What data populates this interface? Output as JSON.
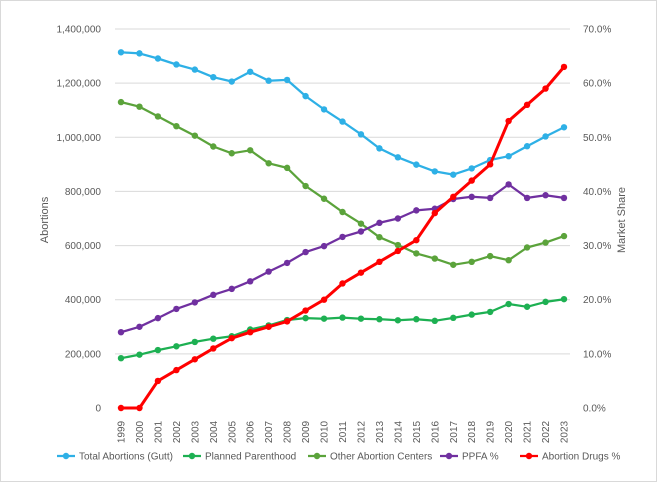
{
  "chart_data": {
    "type": "line",
    "title": "",
    "xlabel": "",
    "ylabel": "Abortions",
    "y2label": "Market Share",
    "ylim": [
      0,
      1400000
    ],
    "y2lim": [
      0,
      70
    ],
    "yticks": [
      0,
      200000,
      400000,
      600000,
      800000,
      1000000,
      1200000,
      1400000
    ],
    "ytick_labels": [
      "0",
      "200,000",
      "400,000",
      "600,000",
      "800,000",
      "1,000,000",
      "1,200,000",
      "1,400,000"
    ],
    "y2ticks": [
      0,
      10,
      20,
      30,
      40,
      50,
      60,
      70
    ],
    "y2tick_labels": [
      "0.0%",
      "10.0%",
      "20.0%",
      "30.0%",
      "40.0%",
      "50.0%",
      "60.0%",
      "70.0%"
    ],
    "grid": "horizontal",
    "legend_position": "bottom",
    "x": [
      "1999",
      "2000",
      "2001",
      "2002",
      "2003",
      "2004",
      "2005",
      "2006",
      "2007",
      "2008",
      "2009",
      "2010",
      "2011",
      "2012",
      "2013",
      "2014",
      "2015",
      "2016",
      "2017",
      "2018",
      "2019",
      "2020",
      "2021",
      "2022",
      "2023"
    ],
    "series": [
      {
        "name": "Total Abortions (Gutt)",
        "axis": "left",
        "color": "#2EB0E6",
        "values": [
          1314000,
          1310000,
          1291000,
          1269000,
          1250000,
          1222000,
          1206000,
          1242000,
          1209000,
          1212000,
          1152000,
          1103000,
          1058000,
          1011000,
          959000,
          926000,
          899000,
          874000,
          862000,
          885000,
          916000,
          930000,
          967000,
          1003000,
          1037000
        ]
      },
      {
        "name": "Planned Parenthood",
        "axis": "left",
        "color": "#1DB052",
        "values": [
          184000,
          197000,
          214000,
          228000,
          244000,
          256000,
          265000,
          290000,
          305000,
          325000,
          332000,
          330000,
          334000,
          330000,
          328000,
          324000,
          328000,
          322000,
          333000,
          345000,
          355000,
          384000,
          374000,
          392000,
          402000
        ]
      },
      {
        "name": "Other Abortion Centers",
        "axis": "left",
        "color": "#5BA33B",
        "values": [
          1130000,
          1113000,
          1077000,
          1041000,
          1006000,
          966000,
          941000,
          952000,
          904000,
          887000,
          820000,
          773000,
          724000,
          681000,
          631000,
          602000,
          571000,
          552000,
          529000,
          540000,
          561000,
          546000,
          593000,
          611000,
          635000
        ]
      },
      {
        "name": "PPFA %",
        "axis": "right",
        "color": "#7030A0",
        "values": [
          14.0,
          15.0,
          16.6,
          18.3,
          19.5,
          20.9,
          22.0,
          23.4,
          25.2,
          26.8,
          28.8,
          29.9,
          31.6,
          32.6,
          34.2,
          35.0,
          36.5,
          36.8,
          38.6,
          39.0,
          38.8,
          41.3,
          38.8,
          39.3,
          38.8
        ]
      },
      {
        "name": "Abortion Drugs %",
        "axis": "right",
        "color": "#FF0000",
        "values": [
          0.0,
          0.0,
          5.0,
          7.0,
          9.0,
          11.0,
          12.9,
          14.0,
          15.0,
          16.0,
          18.0,
          20.0,
          23.0,
          25.0,
          27.0,
          29.0,
          31.0,
          36.0,
          39.0,
          42.0,
          45.0,
          53.0,
          56.0,
          59.0,
          63.0
        ]
      }
    ]
  }
}
